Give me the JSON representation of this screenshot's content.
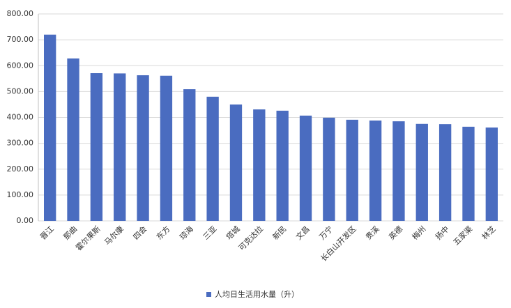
{
  "chart_data": {
    "type": "bar",
    "categories": [
      "晋江",
      "那曲",
      "霍尔果斯",
      "马尔康",
      "四会",
      "东方",
      "琼海",
      "三亚",
      "塔城",
      "可克达拉",
      "新民",
      "文昌",
      "万宁",
      "长白山开发区",
      "贵溪",
      "英德",
      "梅州",
      "扬中",
      "五家渠",
      "林芝"
    ],
    "series": [
      {
        "name": "人均日生活用水量（升）",
        "color": "#4a6cc0",
        "values": [
          720,
          628,
          571,
          570,
          563,
          561,
          509,
          480,
          450,
          431,
          426,
          407,
          399,
          391,
          388,
          385,
          375,
          374,
          364,
          361
        ]
      }
    ],
    "ylim": [
      0,
      800
    ],
    "yticks": [
      {
        "value": 0,
        "label": "0.00"
      },
      {
        "value": 100,
        "label": "100.00"
      },
      {
        "value": 200,
        "label": "200.00"
      },
      {
        "value": 300,
        "label": "300.00"
      },
      {
        "value": 400,
        "label": "400.00"
      },
      {
        "value": 500,
        "label": "500.00"
      },
      {
        "value": 600,
        "label": "600.00"
      },
      {
        "value": 700,
        "label": "700.00"
      },
      {
        "value": 800,
        "label": "800.00"
      }
    ],
    "grid": true,
    "legend": "bottom"
  }
}
